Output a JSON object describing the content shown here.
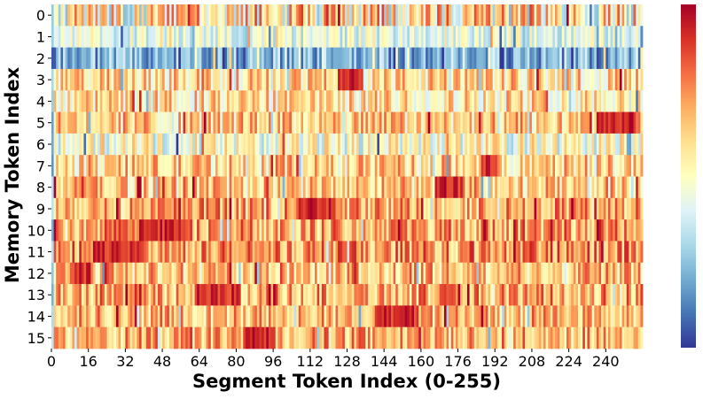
{
  "chart_data": {
    "type": "heatmap",
    "title": "",
    "xlabel": "Segment Token Index (0-255)",
    "ylabel": "Memory Token Index",
    "x_ticks": [
      0,
      16,
      32,
      48,
      64,
      80,
      96,
      112,
      128,
      144,
      160,
      176,
      192,
      208,
      224,
      240
    ],
    "y_ticks": [
      0,
      1,
      2,
      3,
      4,
      5,
      6,
      7,
      8,
      9,
      10,
      11,
      12,
      13,
      14,
      15
    ],
    "n_cols": 256,
    "n_rows": 16,
    "xlim": [
      0,
      256
    ],
    "colormap": "RdYlBu_r",
    "value_range": [
      0,
      1
    ],
    "colorbar": "right, no tick labels",
    "row_profiles": [
      {
        "row": 0,
        "base": 0.55,
        "spread": 0.32,
        "hot_spans": []
      },
      {
        "row": 1,
        "base": 0.42,
        "spread": 0.14,
        "hot_spans": []
      },
      {
        "row": 2,
        "base": 0.22,
        "spread": 0.18,
        "hot_spans": []
      },
      {
        "row": 3,
        "base": 0.6,
        "spread": 0.2,
        "hot_spans": [
          [
            124,
            134
          ]
        ]
      },
      {
        "row": 4,
        "base": 0.58,
        "spread": 0.2,
        "hot_spans": []
      },
      {
        "row": 5,
        "base": 0.63,
        "spread": 0.2,
        "hot_spans": [
          [
            236,
            252
          ]
        ]
      },
      {
        "row": 6,
        "base": 0.48,
        "spread": 0.2,
        "hot_spans": []
      },
      {
        "row": 7,
        "base": 0.62,
        "spread": 0.2,
        "hot_spans": [
          [
            186,
            192
          ]
        ]
      },
      {
        "row": 8,
        "base": 0.63,
        "spread": 0.2,
        "hot_spans": [
          [
            166,
            178
          ]
        ]
      },
      {
        "row": 9,
        "base": 0.7,
        "spread": 0.2,
        "hot_spans": [
          [
            106,
            122
          ]
        ]
      },
      {
        "row": 10,
        "base": 0.72,
        "spread": 0.2,
        "hot_spans": [
          [
            38,
            58
          ]
        ]
      },
      {
        "row": 11,
        "base": 0.73,
        "spread": 0.2,
        "hot_spans": [
          [
            18,
            40
          ]
        ]
      },
      {
        "row": 12,
        "base": 0.66,
        "spread": 0.2,
        "hot_spans": [
          [
            8,
            16
          ]
        ]
      },
      {
        "row": 13,
        "base": 0.7,
        "spread": 0.2,
        "hot_spans": [
          [
            62,
            80
          ]
        ]
      },
      {
        "row": 14,
        "base": 0.67,
        "spread": 0.2,
        "hot_spans": [
          [
            140,
            158
          ]
        ]
      },
      {
        "row": 15,
        "base": 0.68,
        "spread": 0.2,
        "hot_spans": [
          [
            84,
            96
          ]
        ]
      }
    ]
  }
}
